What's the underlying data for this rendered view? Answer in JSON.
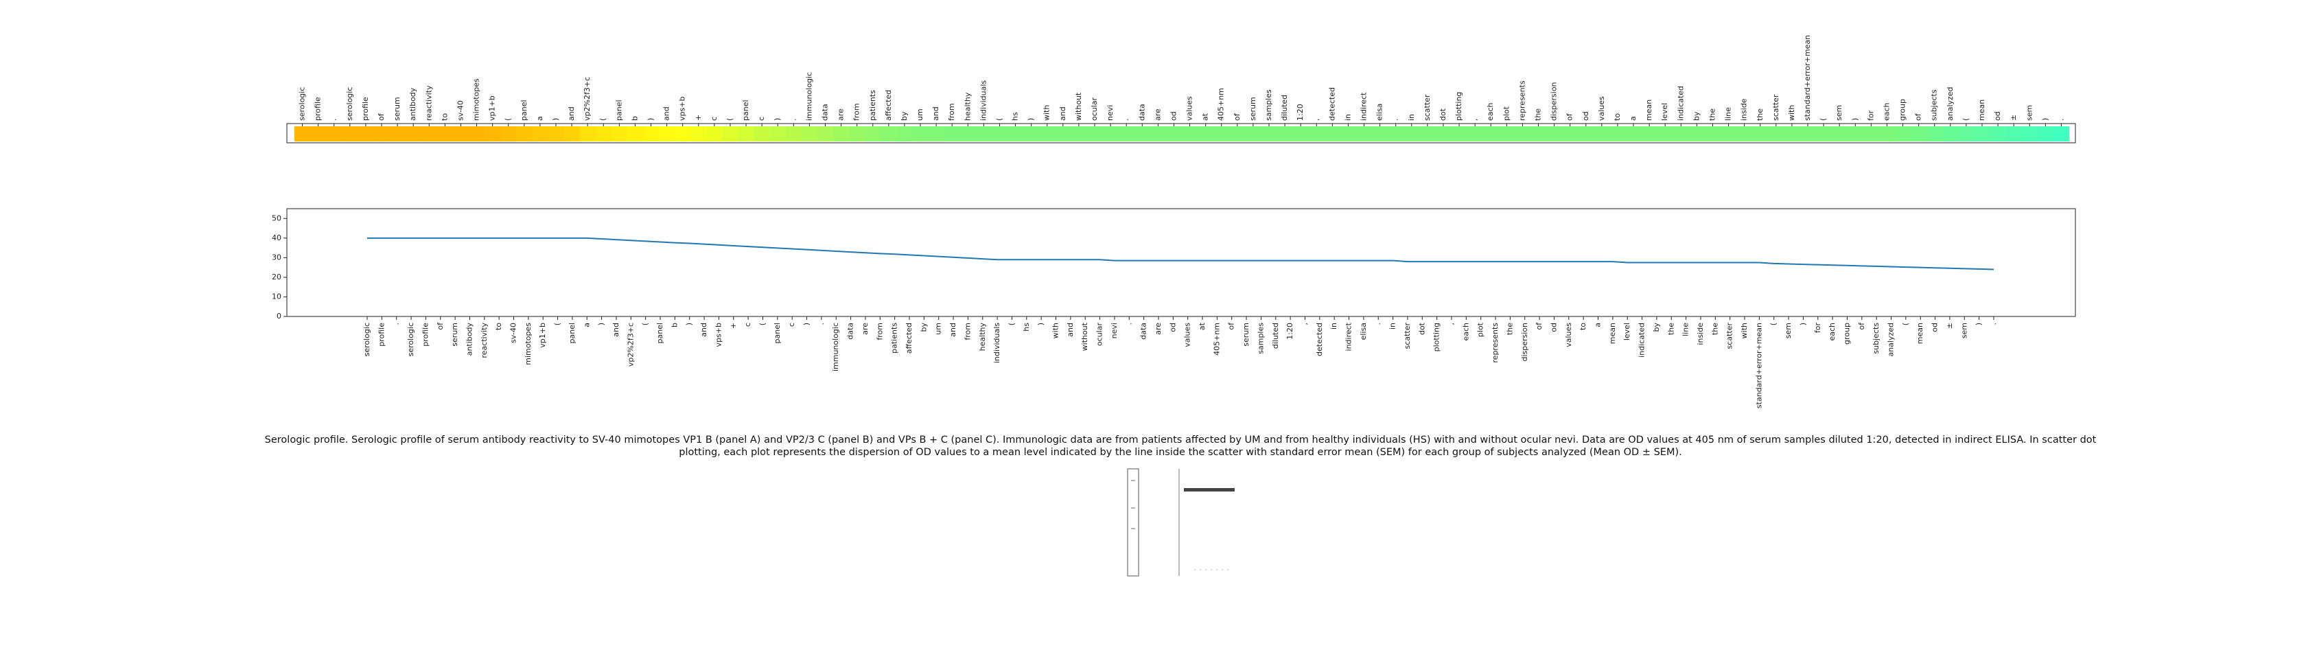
{
  "chart_data": [
    {
      "type": "heatmap",
      "categories": [
        "serologic",
        "profile",
        ".",
        "serologic",
        "profile",
        "of",
        "serum",
        "antibody",
        "reactivity",
        "to",
        "sv-40",
        "mimotopes",
        "vp1+b",
        "(",
        "panel",
        "a",
        ")",
        "and",
        "vp2%2f3+c",
        "(",
        "panel",
        "b",
        ")",
        "and",
        "vps+b",
        "+",
        "c",
        "(",
        "panel",
        "c",
        ")",
        ".",
        "immunologic",
        "data",
        "are",
        "from",
        "patients",
        "affected",
        "by",
        "um",
        "and",
        "from",
        "healthy",
        "individuals",
        "(",
        "hs",
        ")",
        "with",
        "and",
        "without",
        "ocular",
        "nevi",
        ".",
        "data",
        "are",
        "od",
        "values",
        "at",
        "405+nm",
        "of",
        "serum",
        "samples",
        "diluted",
        "1:20",
        ",",
        "detected",
        "in",
        "indirect",
        "elisa",
        ".",
        "in",
        "scatter",
        "dot",
        "plotting",
        ",",
        "each",
        "plot",
        "represents",
        "the",
        "dispersion",
        "of",
        "od",
        "values",
        "to",
        "a",
        "mean",
        "level",
        "indicated",
        "by",
        "the",
        "line",
        "inside",
        "the",
        "scatter",
        "with",
        "standard+error+mean",
        "(",
        "sem",
        ")",
        "for",
        "each",
        "group",
        "of",
        "subjects",
        "analyzed",
        "(",
        "mean",
        "od",
        "±",
        "sem",
        ")",
        "."
      ],
      "values": [
        0.05,
        0.05,
        0.05,
        0.05,
        0.05,
        0.05,
        0.05,
        0.05,
        0.05,
        0.05,
        0.05,
        0.05,
        0.06,
        0.08,
        0.1,
        0.12,
        0.14,
        0.16,
        0.22,
        0.24,
        0.26,
        0.28,
        0.3,
        0.32,
        0.34,
        0.36,
        0.38,
        0.42,
        0.45,
        0.48,
        0.5,
        0.52,
        0.54,
        0.56,
        0.58,
        0.6,
        0.62,
        0.64,
        0.65,
        0.66,
        0.66,
        0.67,
        0.67,
        0.67,
        0.67,
        0.67,
        0.67,
        0.67,
        0.67,
        0.67,
        0.67,
        0.67,
        0.67,
        0.67,
        0.67,
        0.67,
        0.67,
        0.67,
        0.67,
        0.67,
        0.67,
        0.67,
        0.67,
        0.67,
        0.67,
        0.67,
        0.67,
        0.67,
        0.67,
        0.67,
        0.67,
        0.67,
        0.67,
        0.67,
        0.67,
        0.67,
        0.67,
        0.67,
        0.67,
        0.67,
        0.67,
        0.67,
        0.67,
        0.67,
        0.67,
        0.67,
        0.67,
        0.67,
        0.67,
        0.67,
        0.67,
        0.67,
        0.67,
        0.67,
        0.67,
        0.67,
        0.67,
        0.67,
        0.67,
        0.67,
        0.67,
        0.7,
        0.73,
        0.76,
        0.79,
        0.82,
        0.85,
        0.88,
        0.91,
        0.94,
        0.97,
        1.0
      ],
      "colormap": [
        "#ffa800",
        "#ffff10",
        "#80f878",
        "#40ffc0"
      ]
    },
    {
      "type": "line",
      "categories": [
        "serologic",
        "profile",
        ".",
        "serologic",
        "profile",
        "of",
        "serum",
        "antibody",
        "reactivity",
        "to",
        "sv-40",
        "mimotopes",
        "vp1+b",
        "(",
        "panel",
        "a",
        ")",
        "and",
        "vp2%2f3+c",
        "(",
        "panel",
        "b",
        ")",
        "and",
        "vps+b",
        "+",
        "c",
        "(",
        "panel",
        "c",
        ")",
        ".",
        "immunologic",
        "data",
        "are",
        "from",
        "patients",
        "affected",
        "by",
        "um",
        "and",
        "from",
        "healthy",
        "individuals",
        "(",
        "hs",
        ")",
        "with",
        "and",
        "without",
        "ocular",
        "nevi",
        ".",
        "data",
        "are",
        "od",
        "values",
        "at",
        "405+nm",
        "of",
        "serum",
        "samples",
        "diluted",
        "1:20",
        ",",
        "detected",
        "in",
        "indirect",
        "elisa",
        ".",
        "in",
        "scatter",
        "dot",
        "plotting",
        ",",
        "each",
        "plot",
        "represents",
        "the",
        "dispersion",
        "of",
        "od",
        "values",
        "to",
        "a",
        "mean",
        "level",
        "indicated",
        "by",
        "the",
        "line",
        "inside",
        "the",
        "scatter",
        "with",
        "standard+error+mean",
        "(",
        "sem",
        ")",
        "for",
        "each",
        "group",
        "of",
        "subjects",
        "analyzed",
        "(",
        "mean",
        "od",
        "±",
        "sem",
        ")",
        "."
      ],
      "values": [
        40,
        40,
        40,
        40,
        40,
        40,
        40,
        40,
        40,
        40,
        40,
        40,
        40,
        40,
        40,
        40,
        39.6,
        39.2,
        38.8,
        38.4,
        38.0,
        37.6,
        37.3,
        36.9,
        36.5,
        36.1,
        35.7,
        35.3,
        34.9,
        34.5,
        34.1,
        33.7,
        33.3,
        32.9,
        32.5,
        32.1,
        31.8,
        31.4,
        31.0,
        30.6,
        30.2,
        29.8,
        29.4,
        29.0,
        29,
        29,
        29,
        29,
        29,
        29,
        29,
        28.5,
        28.5,
        28.5,
        28.5,
        28.5,
        28.5,
        28.5,
        28.5,
        28.5,
        28.5,
        28.5,
        28.5,
        28.5,
        28.5,
        28.5,
        28.5,
        28.5,
        28.5,
        28.5,
        28.5,
        28,
        28,
        28,
        28,
        28,
        28,
        28,
        28,
        28,
        28,
        28,
        28,
        28,
        28,
        28,
        27.5,
        27.5,
        27.5,
        27.5,
        27.5,
        27.5,
        27.5,
        27.5,
        27.5,
        27.5,
        27,
        26.8,
        26.6,
        26.4,
        26.2,
        26,
        25.8,
        25.6,
        25.4,
        25.2,
        25,
        24.8,
        24.6,
        24.4,
        24.2,
        24
      ],
      "color": "#1f77b4",
      "ylim": [
        0,
        55
      ],
      "yticks": [
        0,
        10,
        20,
        30,
        40,
        50
      ]
    }
  ],
  "caption": "Serologic profile. Serologic profile of serum antibody reactivity to SV-40 mimotopes VP1 B (panel A) and VP2/3 C (panel B) and VPs B + C (panel C). Immunologic data are from patients affected by UM and from healthy individuals (HS) with and without ocular nevi. Data are OD values at 405 nm of serum samples diluted 1:20, detected in indirect ELISA. In scatter dot plotting, each plot represents the dispersion of OD values to a mean level indicated by the line inside the scatter with standard error mean (SEM) for each group of subjects analyzed (Mean OD ± SEM)."
}
